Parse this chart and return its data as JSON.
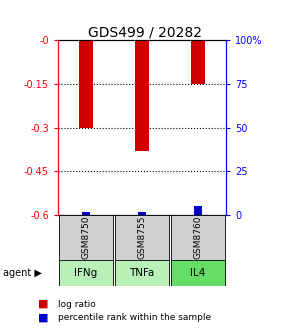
{
  "title": "GDS499 / 20282",
  "samples": [
    "GSM8750",
    "GSM8755",
    "GSM8760"
  ],
  "agents": [
    "IFNg",
    "TNFa",
    "IL4"
  ],
  "log_ratios": [
    -0.3,
    -0.38,
    -0.15
  ],
  "percentile_ranks": [
    1.5,
    1.5,
    5.0
  ],
  "ylim_left": [
    -0.6,
    0.0
  ],
  "yticks_left": [
    0.0,
    -0.15,
    -0.3,
    -0.45,
    -0.6
  ],
  "ytick_labels_left": [
    "-0",
    "-0.15",
    "-0.3",
    "-0.45",
    "-0.6"
  ],
  "right_tick_positions": [
    0.0,
    -0.15,
    -0.3,
    -0.45,
    -0.6
  ],
  "ytick_labels_right": [
    "100%",
    "75",
    "50",
    "25",
    "0"
  ],
  "bar_color_red": "#cc0000",
  "bar_color_blue": "#0000cc",
  "agent_colors": {
    "IFNg": "#b8f0b8",
    "TNFa": "#b8f0b8",
    "IL4": "#66dd66"
  },
  "sample_bg_color": "#d0d0d0",
  "legend_red": "log ratio",
  "legend_blue": "percentile rank within the sample",
  "bar_width": 0.25
}
